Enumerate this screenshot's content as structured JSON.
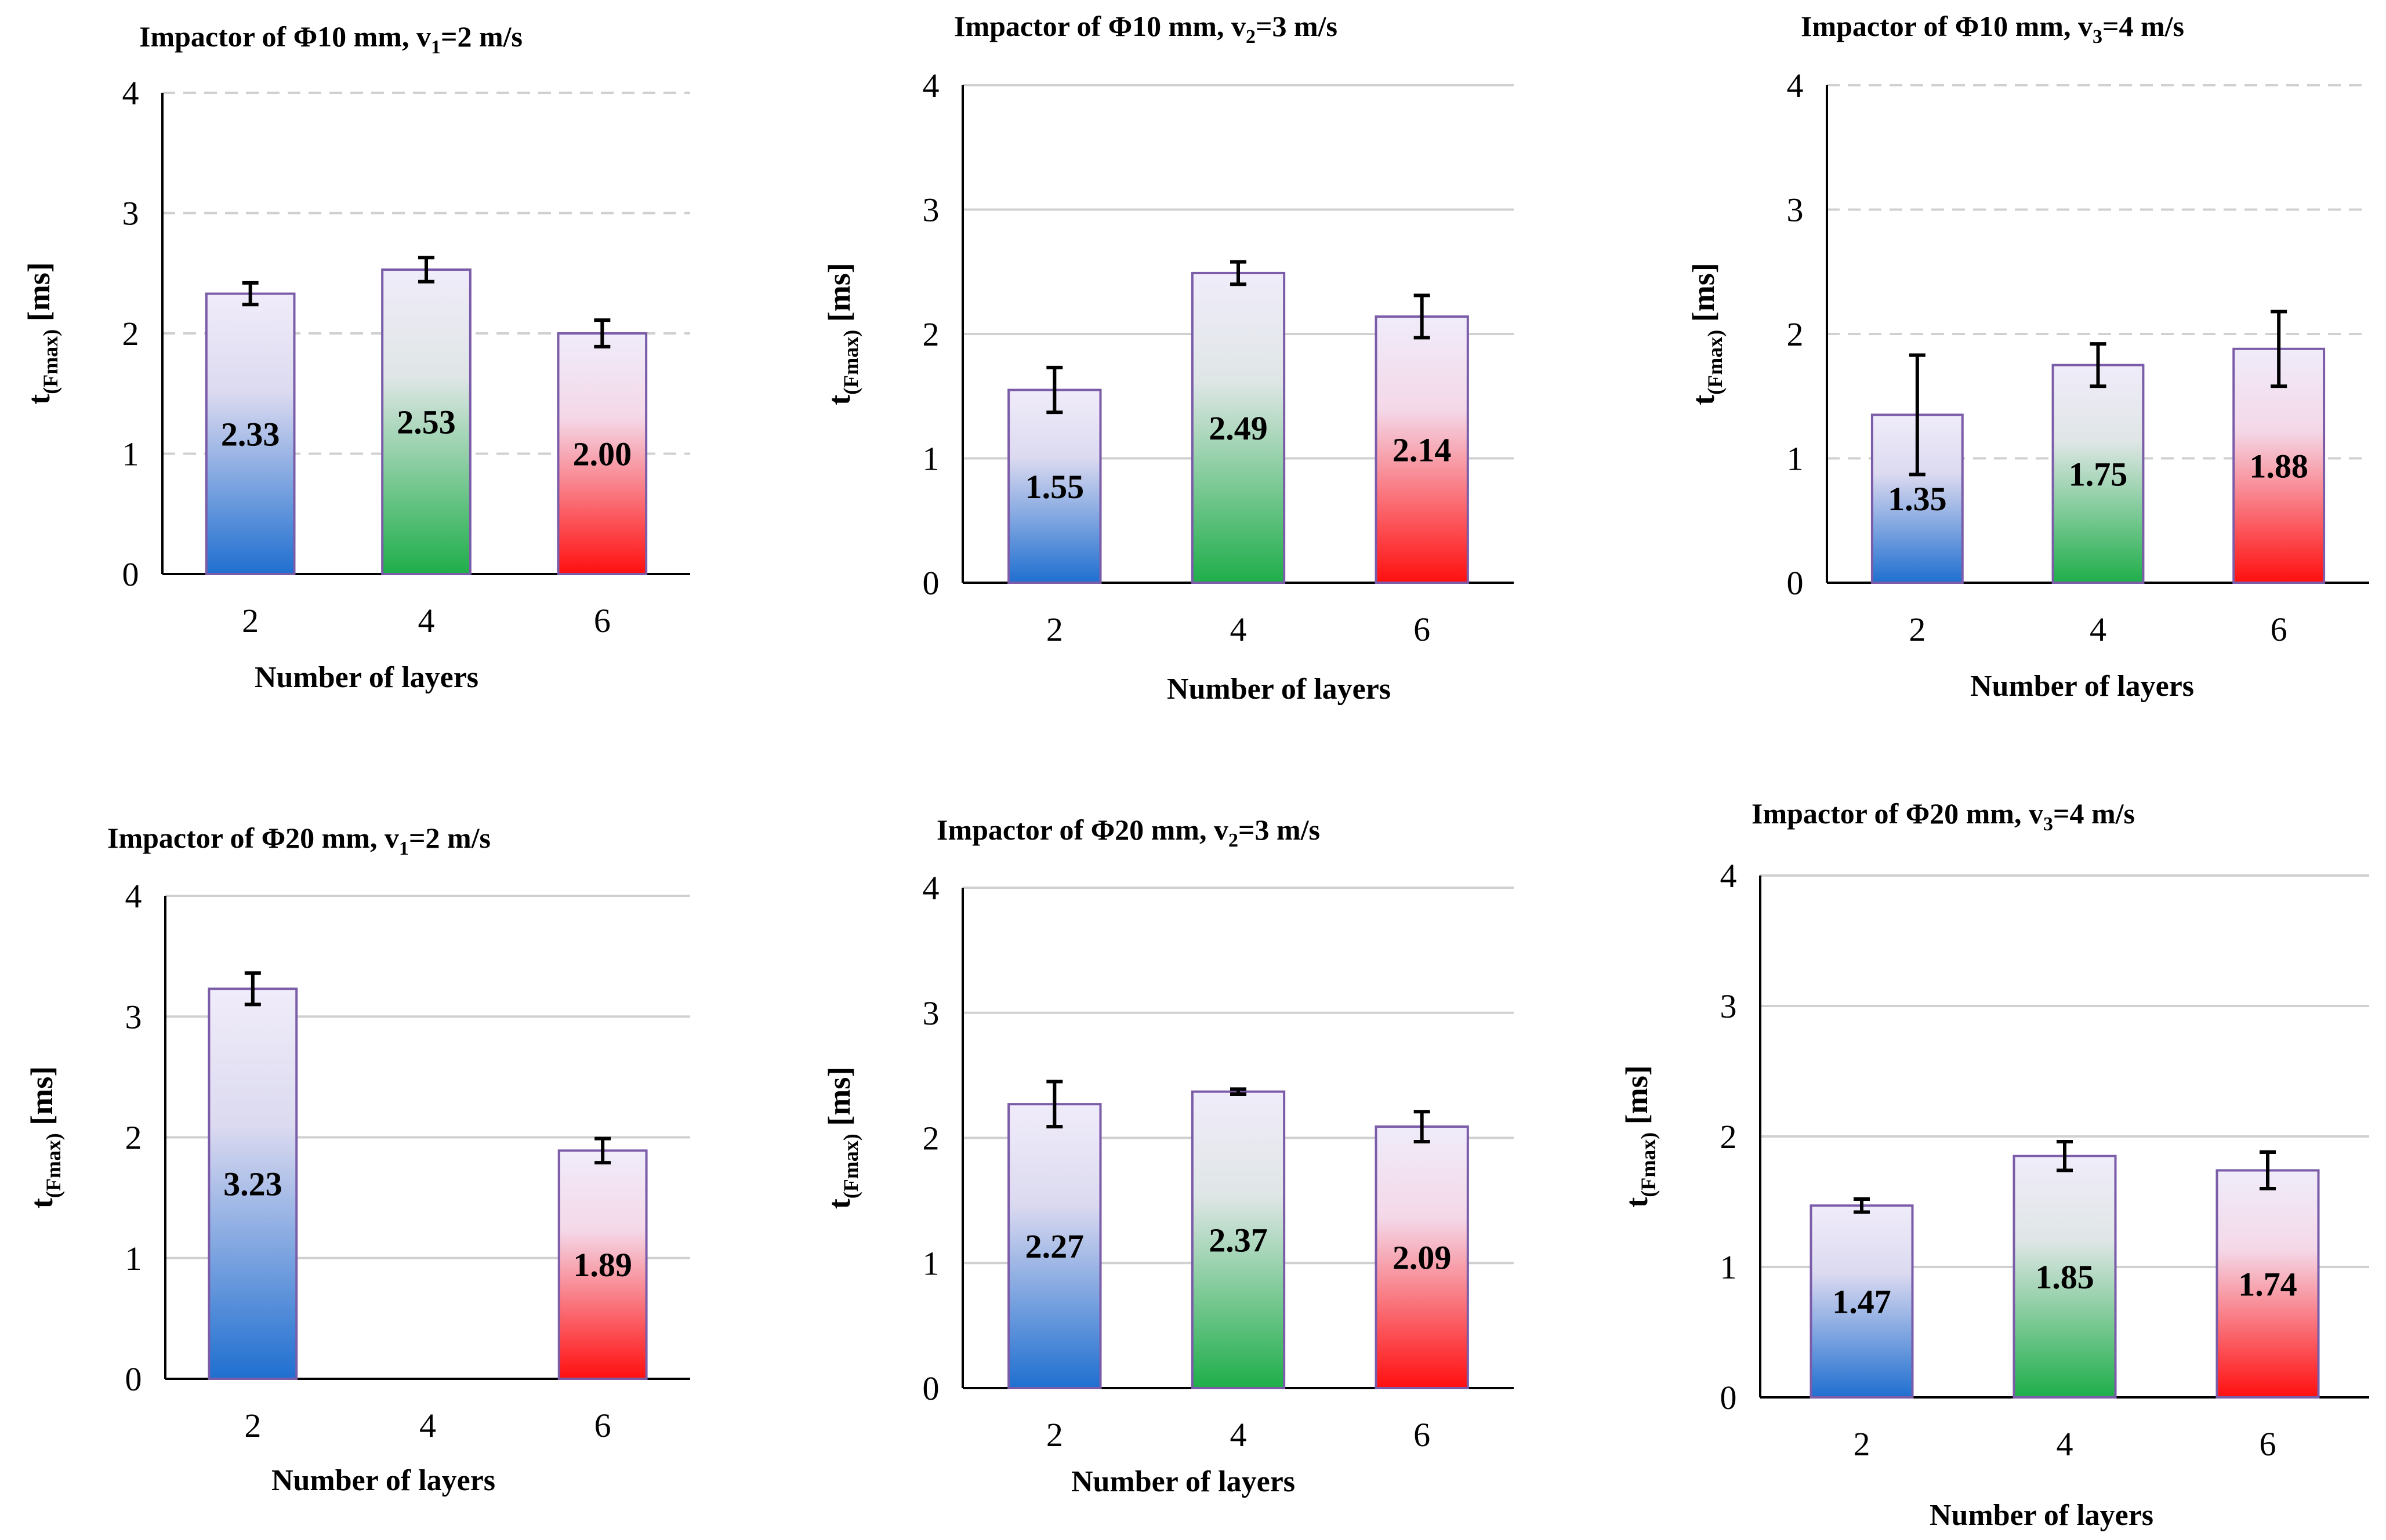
{
  "colors": {
    "blue": "#1f6fd0",
    "green": "#1fae4a",
    "red": "#ff0f0f",
    "top": "#f0ecfa",
    "outline": "#7a5ca8"
  },
  "chart_data": [
    {
      "type": "bar",
      "title": "Impactor of Φ10 mm, v",
      "title_sub": "1",
      "title_tail": "=2 m/s",
      "xlabel": "Number of layers",
      "ylabel": "t",
      "ylabel_sub": "(Fmax)",
      "ylabel_unit": " [ms]",
      "ylim": [
        0,
        4
      ],
      "yticks": [
        "0",
        "1",
        "2",
        "3",
        "4"
      ],
      "categories": [
        "2",
        "4",
        "6"
      ],
      "values": [
        2.33,
        2.53,
        2.0
      ],
      "errors": [
        0.09,
        0.1,
        0.11
      ],
      "labels": [
        "2.33",
        "2.53",
        "2.00"
      ],
      "grid": "dashed"
    },
    {
      "type": "bar",
      "title": "Impactor of Φ10 mm, v",
      "title_sub": "2",
      "title_tail": "=3 m/s",
      "xlabel": "Number of layers",
      "ylabel": "t",
      "ylabel_sub": "(Fmax)",
      "ylabel_unit": " [ms]",
      "ylim": [
        0,
        4
      ],
      "yticks": [
        "0",
        "1",
        "2",
        "3",
        "4"
      ],
      "categories": [
        "2",
        "4",
        "6"
      ],
      "values": [
        1.55,
        2.49,
        2.14
      ],
      "errors": [
        0.18,
        0.09,
        0.17
      ],
      "labels": [
        "1.55",
        "2.49",
        "2.14"
      ],
      "grid": "solid"
    },
    {
      "type": "bar",
      "title": "Impactor of Φ10 mm, v",
      "title_sub": "3",
      "title_tail": "=4 m/s",
      "xlabel": "Number of layers",
      "ylabel": "t",
      "ylabel_sub": "(Fmax)",
      "ylabel_unit": " [ms]",
      "ylim": [
        0,
        4
      ],
      "yticks": [
        "0",
        "1",
        "2",
        "3",
        "4"
      ],
      "categories": [
        "2",
        "4",
        "6"
      ],
      "values": [
        1.35,
        1.75,
        1.88
      ],
      "errors": [
        0.48,
        0.17,
        0.3
      ],
      "labels": [
        "1.35",
        "1.75",
        "1.88"
      ],
      "grid": "dashed"
    },
    {
      "type": "bar",
      "title": "Impactor of Φ20 mm, v",
      "title_sub": "1",
      "title_tail": "=2 m/s",
      "xlabel": "Number of layers",
      "ylabel": "t",
      "ylabel_sub": "(Fmax)",
      "ylabel_unit": " [ms]",
      "ylim": [
        0,
        4
      ],
      "yticks": [
        "0",
        "1",
        "2",
        "3",
        "4"
      ],
      "categories": [
        "2",
        "4",
        "6"
      ],
      "values": [
        3.23,
        0,
        1.89
      ],
      "errors": [
        0.13,
        0,
        0.1
      ],
      "labels": [
        "3.23",
        "",
        "1.89"
      ],
      "grid": "solid"
    },
    {
      "type": "bar",
      "title": "Impactor of Φ20 mm, v",
      "title_sub": "2",
      "title_tail": "=3 m/s",
      "xlabel": "Number of layers",
      "ylabel": "t",
      "ylabel_sub": "(Fmax)",
      "ylabel_unit": " [ms]",
      "ylim": [
        0,
        4
      ],
      "yticks": [
        "0",
        "1",
        "2",
        "3",
        "4"
      ],
      "categories": [
        "2",
        "4",
        "6"
      ],
      "values": [
        2.27,
        2.37,
        2.09
      ],
      "errors": [
        0.18,
        0.02,
        0.12
      ],
      "labels": [
        "2.27",
        "2.37",
        "2.09"
      ],
      "grid": "solid"
    },
    {
      "type": "bar",
      "title": "Impactor of Φ20 mm, v",
      "title_sub": "3",
      "title_tail": "=4 m/s",
      "xlabel": "Number of layers",
      "ylabel": "t",
      "ylabel_sub": "(Fmax)",
      "ylabel_unit": " [ms]",
      "ylim": [
        0,
        4
      ],
      "yticks": [
        "0",
        "1",
        "2",
        "3",
        "4"
      ],
      "categories": [
        "2",
        "4",
        "6"
      ],
      "values": [
        1.47,
        1.85,
        1.74
      ],
      "errors": [
        0.05,
        0.11,
        0.14
      ],
      "labels": [
        "1.47",
        "1.85",
        "1.74"
      ],
      "grid": "solid"
    }
  ]
}
